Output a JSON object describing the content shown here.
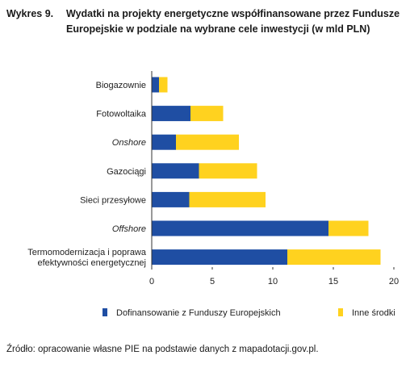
{
  "header": {
    "figure_number": "Wykres 9.",
    "title": "Wydatki na projekty energetyczne współfinansowane przez Fundusze Europejskie w podziale na wybrane cele inwestycji (w mld PLN)"
  },
  "source": "Źródło: opracowanie własne PIE na podstawie danych z mapadotacji.gov.pl.",
  "chart_data": {
    "type": "bar",
    "orientation": "horizontal",
    "stacked": true,
    "categories": [
      {
        "label": "Biogazownie",
        "lines": [
          "Biogazownie"
        ],
        "italic": false
      },
      {
        "label": "Fotowoltaika",
        "lines": [
          "Fotowoltaika"
        ],
        "italic": false
      },
      {
        "label": "Onshore",
        "lines": [
          "Onshore"
        ],
        "italic": true
      },
      {
        "label": "Gazociągi",
        "lines": [
          "Gazociągi"
        ],
        "italic": false
      },
      {
        "label": "Sieci przesyłowe",
        "lines": [
          "Sieci przesyłowe"
        ],
        "italic": false
      },
      {
        "label": "Offshore",
        "lines": [
          "Offshore"
        ],
        "italic": true
      },
      {
        "label": "Termomodernizacja i poprawa efektywności energetycznej",
        "lines": [
          "Termomodernizacja i poprawa",
          "efektywności energetycznej"
        ],
        "italic": false
      }
    ],
    "series": [
      {
        "name": "Dofinansowanie z Funduszy Europejskich",
        "color": "#1f4ea3",
        "values": [
          0.6,
          3.2,
          2.0,
          3.9,
          3.1,
          14.6,
          11.2
        ]
      },
      {
        "name": "Inne środki",
        "color": "#ffd21f",
        "values": [
          0.7,
          2.7,
          5.2,
          4.8,
          6.3,
          3.3,
          7.7
        ]
      }
    ],
    "xlim": [
      0,
      20
    ],
    "xticks": [
      0,
      5,
      10,
      15,
      20
    ],
    "legend_position": "bottom",
    "grid": false
  }
}
